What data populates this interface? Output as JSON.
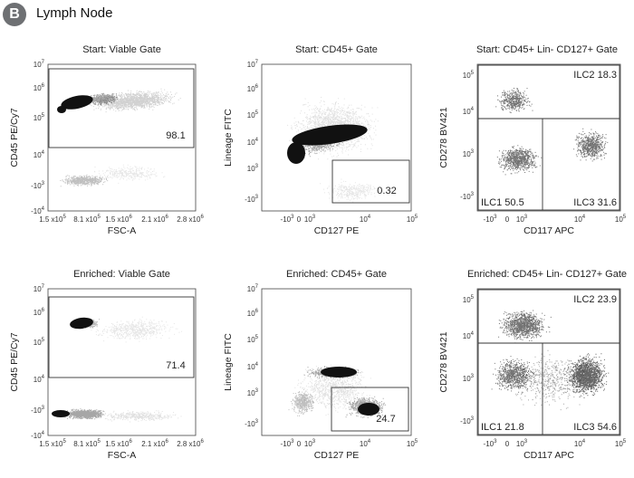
{
  "figure": {
    "badge": "B",
    "title": "Lymph Node"
  },
  "chart_data": [
    {
      "type": "scatter",
      "kind": "viable",
      "title": "Start: Viable Gate",
      "xlabel": "FSC-A",
      "ylabel": "CD45 PE/Cy7",
      "xticks": [
        [
          "1.5 x10",
          "5"
        ],
        [
          "8.1 x10",
          "5"
        ],
        [
          "1.5 x10",
          "6"
        ],
        [
          "2.1 x10",
          "6"
        ],
        [
          "2.8 x10",
          "6"
        ]
      ],
      "yticks": [
        [
          "10",
          "7"
        ],
        [
          "10",
          "6"
        ],
        [
          "10",
          "5"
        ],
        [
          "10",
          "4"
        ],
        [
          "-10",
          "3"
        ],
        [
          "-10",
          "4"
        ]
      ],
      "gates": [
        {
          "label": "98.1"
        }
      ]
    },
    {
      "type": "scatter",
      "kind": "cd45",
      "title": "Start: CD45+ Gate",
      "xlabel": "CD127 PE",
      "ylabel": "Lineage FITC",
      "xticks": [
        [
          "-10",
          "3"
        ],
        [
          "0",
          "",
          ""
        ],
        [
          "10",
          "3"
        ],
        [
          "10",
          "4"
        ],
        [
          "10",
          "5"
        ]
      ],
      "yticks": [
        [
          "10",
          "7"
        ],
        [
          "10",
          "6"
        ],
        [
          "10",
          "5"
        ],
        [
          "10",
          "4"
        ],
        [
          "10",
          "3"
        ],
        [
          "-10",
          "3"
        ]
      ],
      "gates": [
        {
          "label": "0.32"
        }
      ]
    },
    {
      "type": "scatter",
      "kind": "ilc",
      "title": "Start: CD45+ Lin- CD127+ Gate",
      "xlabel": "CD117 APC",
      "ylabel": "CD278 BV421",
      "xticks": [
        [
          "-10",
          "3"
        ],
        [
          "0",
          ""
        ],
        [
          "10",
          "3"
        ],
        [
          "10",
          "4"
        ],
        [
          "10",
          "5"
        ]
      ],
      "yticks": [
        [
          "10",
          "5"
        ],
        [
          "10",
          "4"
        ],
        [
          "10",
          "3"
        ],
        [
          "-10",
          "3"
        ]
      ],
      "gates": [
        {
          "label": "ILC2 18.3"
        },
        {
          "label": "ILC1 50.5"
        },
        {
          "label": "ILC3 31.6"
        }
      ]
    },
    {
      "type": "scatter",
      "kind": "viable2",
      "title": "Enriched: Viable Gate",
      "xlabel": "FSC-A",
      "ylabel": "CD45 PE/Cy7",
      "xticks": [
        [
          "1.5 x10",
          "5"
        ],
        [
          "8.1 x10",
          "5"
        ],
        [
          "1.5 x10",
          "6"
        ],
        [
          "2.1 x10",
          "6"
        ],
        [
          "2.8 x10",
          "6"
        ]
      ],
      "yticks": [
        [
          "10",
          "7"
        ],
        [
          "10",
          "6"
        ],
        [
          "10",
          "5"
        ],
        [
          "10",
          "4"
        ],
        [
          "-10",
          "3"
        ],
        [
          "-10",
          "4"
        ]
      ],
      "gates": [
        {
          "label": "71.4"
        }
      ]
    },
    {
      "type": "scatter",
      "kind": "cd45b",
      "title": "Enriched: CD45+ Gate",
      "xlabel": "CD127 PE",
      "ylabel": "Lineage FITC",
      "xticks": [
        [
          "-10",
          "3"
        ],
        [
          "0",
          ""
        ],
        [
          "10",
          "3"
        ],
        [
          "10",
          "4"
        ],
        [
          "10",
          "5"
        ]
      ],
      "yticks": [
        [
          "10",
          "7"
        ],
        [
          "10",
          "6"
        ],
        [
          "10",
          "5"
        ],
        [
          "10",
          "4"
        ],
        [
          "10",
          "3"
        ],
        [
          "-10",
          "3"
        ]
      ],
      "gates": [
        {
          "label": "24.7"
        }
      ]
    },
    {
      "type": "scatter",
      "kind": "ilc2",
      "title": "Enriched: CD45+ Lin- CD127+ Gate",
      "xlabel": "CD117 APC",
      "ylabel": "CD278 BV421",
      "xticks": [
        [
          "-10",
          "3"
        ],
        [
          "0",
          ""
        ],
        [
          "10",
          "3"
        ],
        [
          "10",
          "4"
        ],
        [
          "10",
          "5"
        ]
      ],
      "yticks": [
        [
          "10",
          "5"
        ],
        [
          "10",
          "4"
        ],
        [
          "10",
          "3"
        ],
        [
          "-10",
          "3"
        ]
      ],
      "gates": [
        {
          "label": "ILC2 23.9"
        },
        {
          "label": "ILC1 21.8"
        },
        {
          "label": "ILC3 54.6"
        }
      ]
    }
  ]
}
